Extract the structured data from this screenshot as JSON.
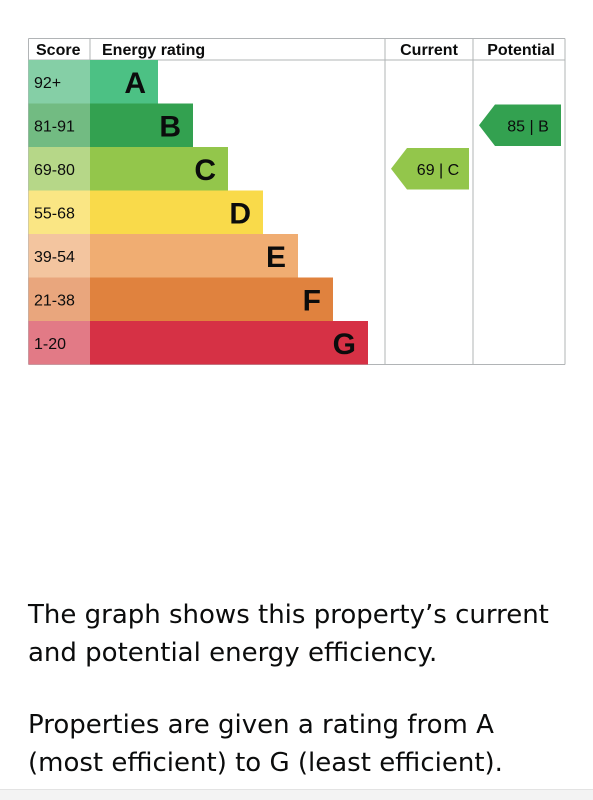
{
  "chart_data": {
    "type": "table",
    "headers": {
      "score": "Score",
      "rating": "Energy rating",
      "current": "Current",
      "potential": "Potential"
    },
    "bands": [
      {
        "range": "92+",
        "letter": "A",
        "color": "#4cc184",
        "score_bg": "#85cfa6"
      },
      {
        "range": "81-91",
        "letter": "B",
        "color": "#33a150",
        "score_bg": "#72bb82"
      },
      {
        "range": "69-80",
        "letter": "C",
        "color": "#93c64b",
        "score_bg": "#b6d788"
      },
      {
        "range": "55-68",
        "letter": "D",
        "color": "#f9da4a",
        "score_bg": "#fae684"
      },
      {
        "range": "39-54",
        "letter": "E",
        "color": "#f0ad72",
        "score_bg": "#f3c59f"
      },
      {
        "range": "21-38",
        "letter": "F",
        "color": "#e0823e",
        "score_bg": "#e9a67d"
      },
      {
        "range": "1-20",
        "letter": "G",
        "color": "#d63145",
        "score_bg": "#e27a86"
      }
    ],
    "current": {
      "score": 69,
      "band": "C",
      "label": "69 | C",
      "color": "#93c64b"
    },
    "potential": {
      "score": 85,
      "band": "B",
      "label": "85 | B",
      "color": "#33a150"
    }
  },
  "description": {
    "p1": "The graph shows this property’s current and potential energy efficiency.",
    "p2": "Properties are given a rating from A (most efficient) to G (least efficient)."
  }
}
